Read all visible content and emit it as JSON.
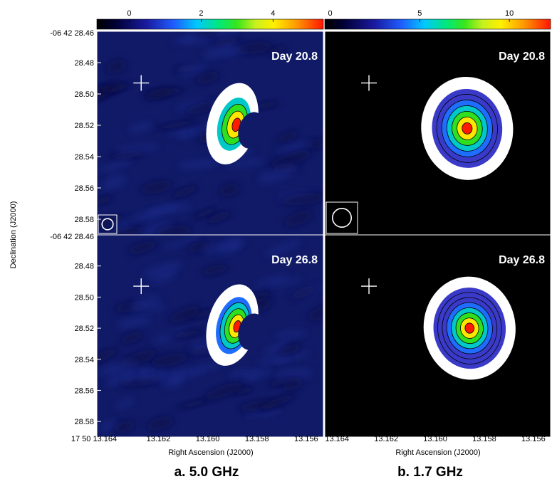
{
  "chart_data": {
    "type": "heatmap",
    "ylabel": "Declination (J2000)",
    "xlabel": "Right Ascension (J2000)",
    "dec_prefix": "-06 42 28.46",
    "dec_ticks": [
      "28.48",
      "28.50",
      "28.52",
      "28.54",
      "28.56",
      "28.58"
    ],
    "ra_prefix": "17 50 13.164",
    "ra_ticks_left": [
      "13.162",
      "13.160",
      "13.158",
      "13.156"
    ],
    "ra_ticks_right": [
      "13.164",
      "13.162",
      "13.160",
      "13.158",
      "13.156"
    ],
    "columns": [
      {
        "caption": "a. 5.0 GHz",
        "colorbar": {
          "ticks": [
            "0",
            "2",
            "4"
          ],
          "tick_values": [
            0,
            2,
            4
          ],
          "range": [
            -0.9,
            5.4
          ]
        },
        "background": "#101a66"
      },
      {
        "caption": "b. 1.7 GHz",
        "colorbar": {
          "ticks": [
            "0",
            "5",
            "10"
          ],
          "tick_values": [
            0,
            5,
            10
          ],
          "range": [
            -0.3,
            12.3
          ]
        },
        "background": "#000000"
      }
    ],
    "epochs": [
      "Day 20.8",
      "Day 26.8"
    ],
    "ra_range": [
      13.1645,
      13.1553
    ],
    "dec_range": [
      28.46,
      28.59
    ],
    "sources": [
      {
        "col": 0,
        "row": 0,
        "ra": 13.159,
        "dec": 28.519,
        "peak": 5.0,
        "rings": 6
      },
      {
        "col": 1,
        "row": 0,
        "ra": 13.1587,
        "dec": 28.522,
        "peak": 12.0,
        "rings": 9
      },
      {
        "col": 0,
        "row": 1,
        "ra": 13.159,
        "dec": 28.518,
        "peak": 4.2,
        "rings": 7
      },
      {
        "col": 1,
        "row": 1,
        "ra": 13.1586,
        "dec": 28.52,
        "peak": 9.5,
        "rings": 10
      }
    ],
    "reference_cross": {
      "ra": 13.1627,
      "dec": 28.493
    }
  }
}
